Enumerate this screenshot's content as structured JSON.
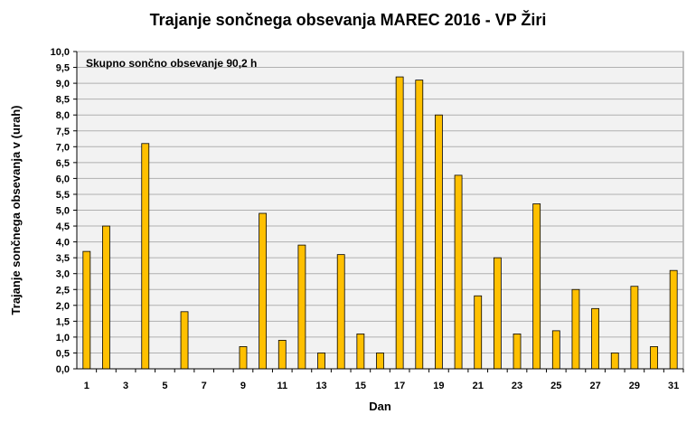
{
  "chart_data": {
    "type": "bar",
    "title": "Trajanje  sončnega  obsevanja  MAREC 2016 - VP Žiri",
    "xlabel": "Dan",
    "ylabel": "Trajanje  sončnega  obsevanja  v  (urah)",
    "annotation": "Skupno sončno obsevanje  90,2 h",
    "categories": [
      1,
      2,
      3,
      4,
      5,
      6,
      7,
      8,
      9,
      10,
      11,
      12,
      13,
      14,
      15,
      16,
      17,
      18,
      19,
      20,
      21,
      22,
      23,
      24,
      25,
      26,
      27,
      28,
      29,
      30,
      31
    ],
    "x_tick_labels": [
      "1",
      "3",
      "5",
      "7",
      "9",
      "11",
      "13",
      "15",
      "17",
      "19",
      "21",
      "23",
      "25",
      "27",
      "29",
      "31"
    ],
    "values": [
      3.7,
      4.5,
      0,
      7.1,
      0,
      1.8,
      0,
      0,
      0.7,
      4.9,
      0.9,
      3.9,
      0.5,
      3.6,
      1.1,
      0.5,
      9.2,
      9.1,
      8.0,
      6.1,
      2.3,
      3.5,
      1.1,
      5.2,
      1.2,
      2.5,
      1.9,
      0.5,
      2.6,
      0.7,
      3.1
    ],
    "ylim": [
      0,
      10
    ],
    "y_tick_labels": [
      "0,0",
      "0,5",
      "1,0",
      "1,5",
      "2,0",
      "2,5",
      "3,0",
      "3,5",
      "4,0",
      "4,5",
      "5,0",
      "5,5",
      "6,0",
      "6,5",
      "7,0",
      "7,5",
      "8,0",
      "8,5",
      "9,0",
      "9,5",
      "10,0"
    ],
    "grid": true,
    "colors": {
      "bar": "#FFC000",
      "bar_stroke": "#000000",
      "plot_bg": "#F2F2F2",
      "grid": "#B0B0B0"
    }
  }
}
